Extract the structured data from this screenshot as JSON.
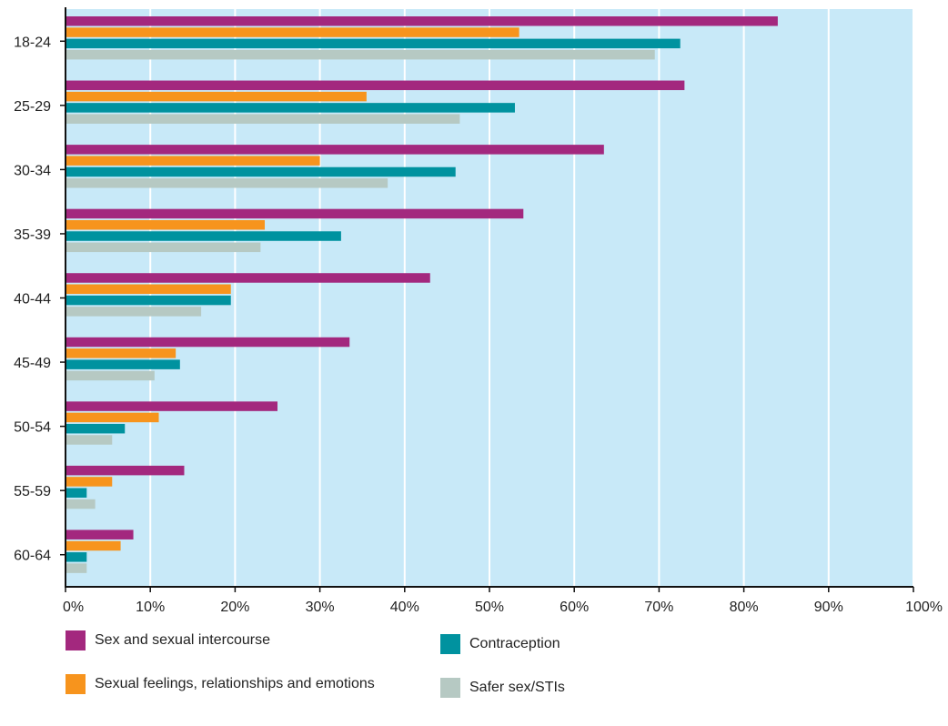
{
  "chart_data": {
    "type": "bar",
    "orientation": "horizontal",
    "categories": [
      "18-24",
      "25-29",
      "30-34",
      "35-39",
      "40-44",
      "45-49",
      "50-54",
      "55-59",
      "60-64"
    ],
    "series": [
      {
        "name": "Sex and sexual intercourse",
        "color": "#a3287e",
        "values": [
          84,
          73,
          63.5,
          54,
          43,
          33.5,
          25,
          14,
          8
        ]
      },
      {
        "name": "Sexual feelings, relationships and emotions",
        "color": "#f7941d",
        "values": [
          53.5,
          35.5,
          30,
          23.5,
          19.5,
          13,
          11,
          5.5,
          6.5
        ]
      },
      {
        "name": "Contraception",
        "color": "#00929f",
        "values": [
          72.5,
          53,
          46,
          32.5,
          19.5,
          13.5,
          7,
          2.5,
          2.5
        ]
      },
      {
        "name": "Safer sex/STIs",
        "color": "#b6c9c3",
        "values": [
          69.5,
          46.5,
          38,
          23,
          16,
          10.5,
          5.5,
          3.5,
          2.5
        ]
      }
    ],
    "xlim": [
      0,
      100
    ],
    "xticks": [
      "0%",
      "10%",
      "20%",
      "30%",
      "40%",
      "50%",
      "60%",
      "70%",
      "80%",
      "90%",
      "100%"
    ],
    "grid": true,
    "background_color": "#c8e9f8",
    "legend_position": "bottom"
  }
}
